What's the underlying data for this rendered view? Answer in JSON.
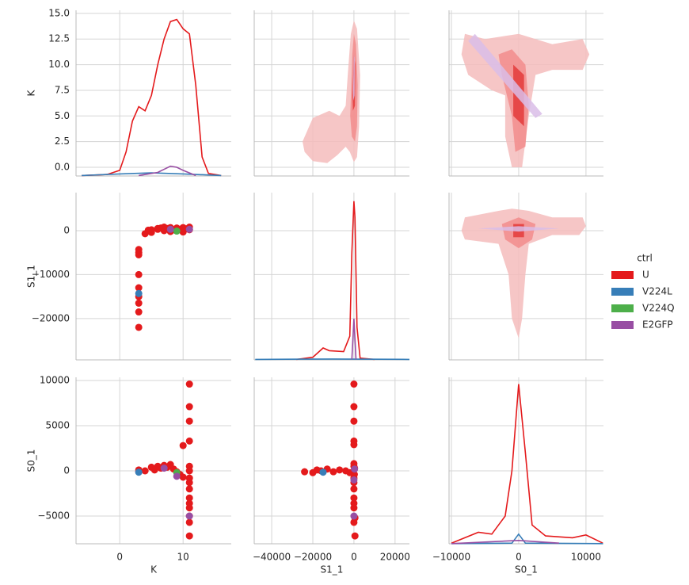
{
  "chart_data": {
    "type": "pairplot",
    "variables": [
      "K",
      "S1_1",
      "S0_1"
    ],
    "legend_title": "ctrl",
    "grid": true,
    "series": [
      {
        "name": "U",
        "color": "#e41a1c"
      },
      {
        "name": "V224L",
        "color": "#377eb8"
      },
      {
        "name": "V224Q",
        "color": "#4daf4a"
      },
      {
        "name": "E2GFP",
        "color": "#984ea3"
      }
    ],
    "x_axes": [
      {
        "xlim": [
          -6.9,
          17.6
        ],
        "xticks": [
          0,
          10
        ]
      },
      {
        "xlim": [
          -48500,
          27000
        ],
        "xticks": [
          {
            "value": -40000,
            "label": "−40000"
          },
          {
            "value": -20000,
            "label": "−20000"
          },
          0,
          20000
        ]
      },
      {
        "xlim": [
          -10350,
          12600
        ],
        "xticks": [
          {
            "value": -10000,
            "label": "−10000"
          },
          0,
          10000
        ]
      }
    ],
    "y_axes": [
      {
        "ylim": [
          -0.85,
          15.3
        ],
        "yticks": [
          {
            "value": 0,
            "label": "0.0"
          },
          2.5,
          {
            "value": 5,
            "label": "5.0"
          },
          7.5,
          {
            "value": 10,
            "label": "10.0"
          },
          12.5,
          {
            "value": 15,
            "label": "15.0"
          }
        ]
      },
      {
        "ylim": [
          -29400,
          8650
        ],
        "yticks": [
          {
            "value": -20000,
            "label": "−20000"
          },
          {
            "value": -10000,
            "label": "−10000"
          },
          0
        ]
      },
      {
        "ylim": [
          -8070,
          10350
        ],
        "yticks": [
          {
            "value": -5000,
            "label": "−5000"
          },
          0,
          5000,
          10000
        ]
      }
    ],
    "panels": [
      {
        "kind": "kde",
        "series": [
          {
            "x": [
              -6,
              -2,
              0,
              1,
              2,
              3,
              4,
              5,
              6,
              7,
              8,
              9,
              10,
              11,
              12,
              13,
              14,
              16
            ],
            "y": [
              -0.8,
              -0.7,
              -0.3,
              1.5,
              4.5,
              5.9,
              5.5,
              7,
              10,
              12.5,
              14.2,
              14.4,
              13.5,
              13,
              8,
              1,
              -0.6,
              -0.8
            ]
          },
          {
            "x": [
              -6,
              0,
              5,
              10,
              16
            ],
            "y": [
              -0.8,
              -0.65,
              -0.55,
              -0.65,
              -0.8
            ]
          },
          null,
          {
            "x": [
              3,
              6,
              8,
              9,
              10,
              12
            ],
            "y": [
              -0.8,
              -0.5,
              0.1,
              0,
              -0.3,
              -0.8
            ]
          }
        ]
      },
      {
        "kind": "kde2d",
        "regions": [
          {
            "color": "#f4bcbc",
            "x": [
              -25000,
              -20000,
              -12000,
              -7000,
              -4000,
              -3000,
              -1500,
              0,
              1500,
              3000,
              2500,
              1500,
              0,
              -2000,
              -4000,
              -8000,
              -13000,
              -20000,
              -24000
            ],
            "y": [
              2.5,
              4.8,
              5.5,
              5,
              6,
              9,
              13,
              14.3,
              13.5,
              9,
              4,
              1,
              0.5,
              1.5,
              2,
              1.2,
              0.4,
              0.6,
              1.5
            ]
          },
          {
            "color": "#f28c8c",
            "x": [
              -1800,
              -800,
              0,
              1000,
              1800,
              1500,
              500,
              -1000
            ],
            "y": [
              5,
              11,
              13,
              12,
              8,
              4,
              2.5,
              3
            ]
          },
          {
            "color": "#e33b3b",
            "x": [
              -700,
              0,
              700,
              500,
              -500
            ],
            "y": [
              7,
              11,
              10,
              6,
              5.5
            ]
          },
          {
            "color": "#d9bde8",
            "x": [
              -400,
              0,
              400,
              300,
              -300
            ],
            "y": [
              7.5,
              11,
              10.5,
              7,
              6.5
            ]
          }
        ]
      },
      {
        "kind": "kde2d",
        "regions": [
          {
            "color": "#f4bcbc",
            "x": [
              -8000,
              -5000,
              0,
              5000,
              9500,
              10500,
              9500,
              5000,
              2500,
              1500,
              500,
              -1000,
              -2000,
              -2000,
              -4000,
              -7500,
              -8500
            ],
            "y": [
              13,
              12.5,
              13,
              12,
              12.5,
              11,
              9.5,
              9.5,
              9,
              5,
              0,
              0,
              3,
              7,
              7.5,
              9,
              11
            ]
          },
          {
            "color": "#f28c8c",
            "x": [
              -3000,
              -1000,
              1000,
              1500,
              1000,
              -500,
              -1000,
              -2500
            ],
            "y": [
              11,
              11.5,
              10,
              6,
              2,
              1.5,
              5,
              9
            ]
          },
          {
            "color": "#e33b3b",
            "x": [
              -800,
              800,
              800,
              -800
            ],
            "y": [
              10,
              9,
              4,
              5
            ]
          },
          {
            "color": "#d9bde8",
            "x": [
              -7500,
              -6500,
              3500,
              2500
            ],
            "y": [
              12.3,
              13,
              5.2,
              4.8
            ]
          }
        ]
      },
      {
        "kind": "scatter",
        "series": [
          {
            "x": [
              3,
              3,
              3,
              3,
              3,
              3,
              3,
              3,
              3,
              4,
              5,
              5,
              6,
              6.5,
              7,
              7.5,
              8,
              8.5,
              9,
              9.5,
              10,
              10.5,
              11,
              11,
              4.5,
              6,
              7,
              8,
              10
            ],
            "y": [
              -4300,
              -5000,
              -5500,
              -10000,
              -13000,
              -15000,
              -16500,
              -18500,
              -22000,
              -700,
              -400,
              200,
              300,
              600,
              800,
              500,
              700,
              200,
              600,
              300,
              700,
              400,
              800,
              200,
              100,
              500,
              0,
              -200,
              -300
            ]
          },
          {
            "x": [
              3
            ],
            "y": [
              -14300
            ]
          },
          {
            "x": [
              9
            ],
            "y": [
              -100
            ]
          },
          {
            "x": [
              8,
              11
            ],
            "y": [
              300,
              300
            ]
          }
        ]
      },
      {
        "kind": "kde",
        "series": [
          {
            "x": [
              -28000,
              -20000,
              -15000,
              -12000,
              -5000,
              -2000,
              -1000,
              0,
              500,
              1500,
              3000,
              10000
            ],
            "y": [
              -29300,
              -28800,
              -26700,
              -27300,
              -27500,
              -24000,
              -5000,
              6700,
              3000,
              -22000,
              -29000,
              -29300
            ]
          },
          {
            "x": [
              -48000,
              -10000,
              27000
            ],
            "y": [
              -29300,
              -29200,
              -29300
            ]
          },
          null,
          {
            "x": [
              -1000,
              0,
              1000
            ],
            "y": [
              -29300,
              -20000,
              -29300
            ]
          }
        ]
      },
      {
        "kind": "kde2d",
        "regions": [
          {
            "color": "#f4bcbc",
            "x": [
              -8000,
              -3000,
              -1000,
              0,
              1500,
              5000,
              9500,
              10000,
              9000,
              5000,
              1500,
              1000,
              500,
              0,
              -1000,
              -1500,
              -3000,
              -8000,
              -8500
            ],
            "y": [
              3000,
              4500,
              5000,
              4800,
              4500,
              3000,
              3000,
              1000,
              -1000,
              -1000,
              -3000,
              -10000,
              -20000,
              -24500,
              -20000,
              -10000,
              -3000,
              -2000,
              0
            ]
          },
          {
            "color": "#f28c8c",
            "x": [
              -2500,
              0,
              2500,
              2000,
              0,
              -2000
            ],
            "y": [
              1500,
              3000,
              1500,
              -2000,
              -4000,
              -2000
            ]
          },
          {
            "color": "#e33b3b",
            "x": [
              -800,
              800,
              800,
              -800
            ],
            "y": [
              1500,
              1500,
              -1500,
              -1500
            ]
          },
          {
            "color": "#d9bde8",
            "x": [
              -6000,
              0,
              6000,
              0
            ],
            "y": [
              500,
              1000,
              500,
              -200
            ]
          }
        ]
      },
      {
        "kind": "scatter",
        "series": [
          {
            "x": [
              3,
              3,
              4,
              5,
              5.5,
              6,
              6.5,
              7,
              7.5,
              8,
              8.5,
              9,
              9.5,
              10,
              10,
              11,
              11,
              11,
              11,
              11,
              11,
              11,
              11,
              11,
              11,
              11,
              11,
              11,
              11,
              11
            ],
            "y": [
              -100,
              100,
              0,
              400,
              100,
              500,
              300,
              600,
              400,
              700,
              200,
              -100,
              -400,
              -700,
              2800,
              9600,
              7100,
              5500,
              3300,
              500,
              0,
              -800,
              -1300,
              -2000,
              -3000,
              -3600,
              -4100,
              -5000,
              -5700,
              -7200
            ]
          },
          {
            "x": [
              3
            ],
            "y": [
              -150
            ]
          },
          {
            "x": [
              9
            ],
            "y": [
              -200
            ]
          },
          {
            "x": [
              7,
              9,
              11
            ],
            "y": [
              300,
              -600,
              -5000
            ]
          }
        ]
      },
      {
        "kind": "scatter",
        "series": [
          {
            "x": [
              -24000,
              -20000,
              -18000,
              -16000,
              -13000,
              -10000,
              -7000,
              -4000,
              -2000,
              0,
              0,
              0,
              0,
              0,
              0,
              0,
              0,
              0,
              0,
              0,
              0,
              0,
              0,
              500,
              500,
              300,
              200
            ],
            "y": [
              -100,
              -200,
              100,
              0,
              200,
              -100,
              100,
              0,
              -200,
              9600,
              7100,
              5500,
              3300,
              2900,
              800,
              500,
              -800,
              -1300,
              -2000,
              -3000,
              -3600,
              -4100,
              -5700,
              -5200,
              -7200,
              300,
              -400
            ]
          },
          {
            "x": [
              -15000
            ],
            "y": [
              -150
            ]
          },
          null,
          {
            "x": [
              0,
              0,
              300
            ],
            "y": [
              -5000,
              -1000,
              200
            ]
          }
        ]
      },
      {
        "kind": "kde",
        "series": [
          {
            "x": [
              -10000,
              -6000,
              -4000,
              -2000,
              -1000,
              0,
              1000,
              2000,
              4000,
              8000,
              10000,
              12500
            ],
            "y": [
              -8000,
              -6800,
              -7000,
              -5000,
              0,
              9600,
              2000,
              -6000,
              -7200,
              -7400,
              -7100,
              -8000
            ]
          },
          {
            "x": [
              -10000,
              -1000,
              0,
              1000,
              12500
            ],
            "y": [
              -8050,
              -8000,
              -7000,
              -8000,
              -8050
            ]
          },
          null,
          {
            "x": [
              -10000,
              0,
              6000
            ],
            "y": [
              -8050,
              -7700,
              -8000
            ]
          }
        ]
      }
    ]
  }
}
